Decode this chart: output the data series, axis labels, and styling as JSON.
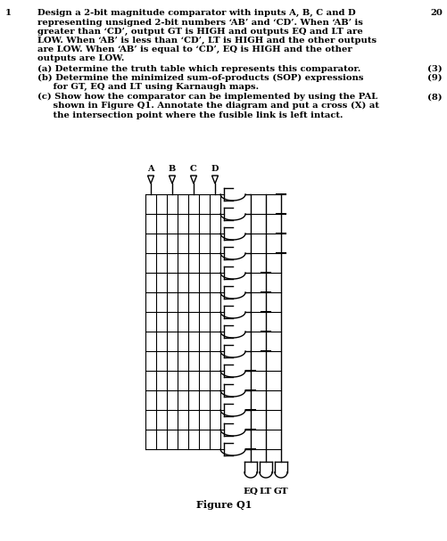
{
  "question_number": "1",
  "question_marks": "20",
  "title_line": "Design a 2-bit magnitude comparator with inputs A, B, C and D",
  "body_lines": [
    "representing unsigned 2-bit numbers ‘AB’ and ‘CD’. When ‘AB’ is",
    "greater than ‘CD’, output GT is HIGH and outputs EQ and LT are",
    "LOW. When ‘AB’ is less than ‘CD’, LT is HIGH and the other outputs",
    "are LOW. When ‘AB’ is equal to ‘CD’, EQ is HIGH and the other",
    "outputs are LOW."
  ],
  "part_a_line1": "(a) Determine the truth table which represents this comparator.",
  "part_a_marks": "(3)",
  "part_b_line1": "(b) Determine the minimized sum-of-products (SOP) expressions",
  "part_b_line2": "     for GT, EQ and LT using Karnaugh maps.",
  "part_b_marks": "(9)",
  "part_c_line1": "(c) Show how the comparator can be implemented by using the PAL",
  "part_c_line2": "     shown in Figure Q1. Annotate the diagram and put a cross (X) at",
  "part_c_line3": "     the intersection point where the fusible link is left intact.",
  "part_c_marks": "(8)",
  "figure_caption": "Figure Q1",
  "inputs": [
    "A",
    "B",
    "C",
    "D"
  ],
  "outputs": [
    "EQ",
    "LT",
    "GT"
  ],
  "num_and_gates": 14,
  "n_input_lines": 8,
  "bg_color": "#ffffff",
  "line_color": "#000000",
  "text_fontsize": 7.2,
  "bold_fontsize": 7.2
}
